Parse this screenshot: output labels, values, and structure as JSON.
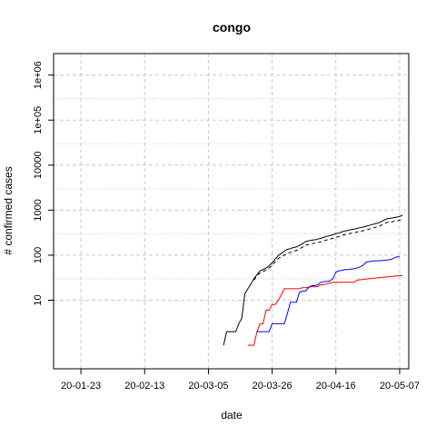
{
  "chart_data": {
    "type": "line",
    "title": "congo",
    "xlabel": "date",
    "ylabel": "# confirmed cases",
    "x_axis": {
      "type": "date",
      "range": [
        "2020-01-14",
        "2020-05-10"
      ],
      "ticks": [
        {
          "date": "2020-01-23",
          "label": "20-01-23"
        },
        {
          "date": "2020-02-13",
          "label": "20-02-13"
        },
        {
          "date": "2020-03-05",
          "label": "20-03-05"
        },
        {
          "date": "2020-03-26",
          "label": "20-03-26"
        },
        {
          "date": "2020-04-16",
          "label": "20-04-16"
        },
        {
          "date": "2020-05-07",
          "label": "20-05-07"
        }
      ]
    },
    "y_axis": {
      "scale": "log",
      "range": [
        0.3,
        3000000
      ],
      "ticks": [
        {
          "value": 10,
          "label": "10"
        },
        {
          "value": 100,
          "label": "100"
        },
        {
          "value": 1000,
          "label": "1000"
        },
        {
          "value": 10000,
          "label": "10000"
        },
        {
          "value": 100000,
          "label": "1e+05"
        },
        {
          "value": 1000000,
          "label": "1e+06"
        }
      ],
      "minor_grid": [
        30,
        300,
        3000,
        30000,
        300000
      ]
    },
    "grid": true,
    "series": [
      {
        "color": "#000000",
        "dash": "solid",
        "points": [
          [
            "2020-03-10",
            1
          ],
          [
            "2020-03-11",
            2
          ],
          [
            "2020-03-14",
            2
          ],
          [
            "2020-03-15",
            3
          ],
          [
            "2020-03-16",
            4
          ],
          [
            "2020-03-17",
            14
          ],
          [
            "2020-03-18",
            18
          ],
          [
            "2020-03-19",
            23
          ],
          [
            "2020-03-20",
            30
          ],
          [
            "2020-03-21",
            37
          ],
          [
            "2020-03-22",
            45
          ],
          [
            "2020-03-23",
            48
          ],
          [
            "2020-03-24",
            52
          ],
          [
            "2020-03-25",
            58
          ],
          [
            "2020-03-26",
            68
          ],
          [
            "2020-03-27",
            81
          ],
          [
            "2020-03-28",
            98
          ],
          [
            "2020-03-29",
            109
          ],
          [
            "2020-03-30",
            123
          ],
          [
            "2020-03-31",
            135
          ],
          [
            "2020-04-01",
            140
          ],
          [
            "2020-04-02",
            148
          ],
          [
            "2020-04-03",
            153
          ],
          [
            "2020-04-04",
            165
          ],
          [
            "2020-04-05",
            180
          ],
          [
            "2020-04-06",
            200
          ],
          [
            "2020-04-07",
            208
          ],
          [
            "2020-04-08",
            215
          ],
          [
            "2020-04-09",
            220
          ],
          [
            "2020-04-10",
            228
          ],
          [
            "2020-04-11",
            235
          ],
          [
            "2020-04-12",
            250
          ],
          [
            "2020-04-13",
            262
          ],
          [
            "2020-04-14",
            272
          ],
          [
            "2020-04-15",
            285
          ],
          [
            "2020-04-16",
            300
          ],
          [
            "2020-04-17",
            310
          ],
          [
            "2020-04-18",
            330
          ],
          [
            "2020-04-19",
            345
          ],
          [
            "2020-04-20",
            355
          ],
          [
            "2020-04-21",
            370
          ],
          [
            "2020-04-22",
            380
          ],
          [
            "2020-04-23",
            395
          ],
          [
            "2020-04-24",
            410
          ],
          [
            "2020-04-25",
            420
          ],
          [
            "2020-04-26",
            440
          ],
          [
            "2020-04-27",
            460
          ],
          [
            "2020-04-28",
            480
          ],
          [
            "2020-04-29",
            500
          ],
          [
            "2020-04-30",
            520
          ],
          [
            "2020-05-01",
            560
          ],
          [
            "2020-05-02",
            610
          ],
          [
            "2020-05-03",
            650
          ],
          [
            "2020-05-04",
            660
          ],
          [
            "2020-05-05",
            680
          ],
          [
            "2020-05-06",
            700
          ],
          [
            "2020-05-07",
            720
          ],
          [
            "2020-05-08",
            780
          ]
        ]
      },
      {
        "color": "#000000",
        "dash": "dashed",
        "points": [
          [
            "2020-03-20",
            28
          ],
          [
            "2020-03-21",
            35
          ],
          [
            "2020-03-22",
            40
          ],
          [
            "2020-03-23",
            43
          ],
          [
            "2020-03-24",
            47
          ],
          [
            "2020-03-25",
            52
          ],
          [
            "2020-03-26",
            60
          ],
          [
            "2020-03-27",
            71
          ],
          [
            "2020-03-28",
            84
          ],
          [
            "2020-03-29",
            92
          ],
          [
            "2020-03-30",
            100
          ],
          [
            "2020-03-31",
            110
          ],
          [
            "2020-04-01",
            115
          ],
          [
            "2020-04-02",
            122
          ],
          [
            "2020-04-03",
            127
          ],
          [
            "2020-04-04",
            138
          ],
          [
            "2020-04-05",
            150
          ],
          [
            "2020-04-06",
            167
          ],
          [
            "2020-04-07",
            172
          ],
          [
            "2020-04-08",
            180
          ],
          [
            "2020-04-09",
            184
          ],
          [
            "2020-04-10",
            190
          ],
          [
            "2020-04-11",
            196
          ],
          [
            "2020-04-12",
            208
          ],
          [
            "2020-04-13",
            218
          ],
          [
            "2020-04-14",
            226
          ],
          [
            "2020-04-15",
            237
          ],
          [
            "2020-04-16",
            250
          ],
          [
            "2020-04-17",
            258
          ],
          [
            "2020-04-18",
            275
          ],
          [
            "2020-04-19",
            287
          ],
          [
            "2020-04-20",
            296
          ],
          [
            "2020-04-21",
            308
          ],
          [
            "2020-04-22",
            315
          ],
          [
            "2020-04-23",
            328
          ],
          [
            "2020-04-24",
            340
          ],
          [
            "2020-04-25",
            350
          ],
          [
            "2020-04-26",
            365
          ],
          [
            "2020-04-27",
            380
          ],
          [
            "2020-04-28",
            398
          ],
          [
            "2020-04-29",
            415
          ],
          [
            "2020-04-30",
            430
          ],
          [
            "2020-05-01",
            465
          ],
          [
            "2020-05-02",
            505
          ],
          [
            "2020-05-03",
            540
          ],
          [
            "2020-05-04",
            548
          ],
          [
            "2020-05-05",
            560
          ],
          [
            "2020-05-06",
            580
          ],
          [
            "2020-05-07",
            595
          ],
          [
            "2020-05-08",
            640
          ]
        ]
      },
      {
        "color": "#ff0000",
        "dash": "solid",
        "points": [
          [
            "2020-03-18",
            1
          ],
          [
            "2020-03-19",
            1
          ],
          [
            "2020-03-20",
            1
          ],
          [
            "2020-03-21",
            2
          ],
          [
            "2020-03-22",
            3
          ],
          [
            "2020-03-23",
            3
          ],
          [
            "2020-03-24",
            6
          ],
          [
            "2020-03-25",
            6
          ],
          [
            "2020-03-26",
            8
          ],
          [
            "2020-03-27",
            8
          ],
          [
            "2020-03-28",
            10
          ],
          [
            "2020-03-29",
            13
          ],
          [
            "2020-03-30",
            18
          ],
          [
            "2020-03-31",
            18
          ],
          [
            "2020-04-01",
            18
          ],
          [
            "2020-04-04",
            18
          ],
          [
            "2020-04-05",
            19
          ],
          [
            "2020-04-06",
            19
          ],
          [
            "2020-04-08",
            20
          ],
          [
            "2020-04-10",
            20
          ],
          [
            "2020-04-11",
            22
          ],
          [
            "2020-04-12",
            22
          ],
          [
            "2020-04-13",
            23
          ],
          [
            "2020-04-14",
            24
          ],
          [
            "2020-04-15",
            25
          ],
          [
            "2020-04-22",
            25
          ],
          [
            "2020-04-23",
            28
          ],
          [
            "2020-04-25",
            29
          ],
          [
            "2020-04-27",
            30
          ],
          [
            "2020-04-29",
            31
          ],
          [
            "2020-05-01",
            32
          ],
          [
            "2020-05-03",
            33
          ],
          [
            "2020-05-05",
            34
          ],
          [
            "2020-05-07",
            35
          ],
          [
            "2020-05-08",
            35
          ]
        ]
      },
      {
        "color": "#0000ff",
        "dash": "solid",
        "points": [
          [
            "2020-03-21",
            2
          ],
          [
            "2020-03-22",
            2
          ],
          [
            "2020-03-23",
            2
          ],
          [
            "2020-03-24",
            2
          ],
          [
            "2020-03-25",
            2
          ],
          [
            "2020-03-26",
            3
          ],
          [
            "2020-03-27",
            3
          ],
          [
            "2020-03-28",
            3
          ],
          [
            "2020-03-29",
            3
          ],
          [
            "2020-03-30",
            3
          ],
          [
            "2020-03-31",
            5
          ],
          [
            "2020-04-01",
            9
          ],
          [
            "2020-04-02",
            9
          ],
          [
            "2020-04-03",
            9
          ],
          [
            "2020-04-04",
            15
          ],
          [
            "2020-04-05",
            16
          ],
          [
            "2020-04-06",
            16
          ],
          [
            "2020-04-07",
            19
          ],
          [
            "2020-04-08",
            21
          ],
          [
            "2020-04-09",
            21
          ],
          [
            "2020-04-10",
            22
          ],
          [
            "2020-04-11",
            25
          ],
          [
            "2020-04-12",
            26
          ],
          [
            "2020-04-13",
            26
          ],
          [
            "2020-04-14",
            27
          ],
          [
            "2020-04-15",
            30
          ],
          [
            "2020-04-16",
            42
          ],
          [
            "2020-04-17",
            45
          ],
          [
            "2020-04-18",
            46
          ],
          [
            "2020-04-19",
            48
          ],
          [
            "2020-04-20",
            48
          ],
          [
            "2020-04-21",
            49
          ],
          [
            "2020-04-22",
            50
          ],
          [
            "2020-04-23",
            52
          ],
          [
            "2020-04-24",
            55
          ],
          [
            "2020-04-25",
            60
          ],
          [
            "2020-04-26",
            70
          ],
          [
            "2020-04-27",
            72
          ],
          [
            "2020-04-28",
            74
          ],
          [
            "2020-04-29",
            75
          ],
          [
            "2020-04-30",
            75
          ],
          [
            "2020-05-01",
            76
          ],
          [
            "2020-05-02",
            77
          ],
          [
            "2020-05-03",
            78
          ],
          [
            "2020-05-04",
            80
          ],
          [
            "2020-05-05",
            85
          ],
          [
            "2020-05-06",
            92
          ],
          [
            "2020-05-07",
            92
          ]
        ]
      }
    ]
  }
}
